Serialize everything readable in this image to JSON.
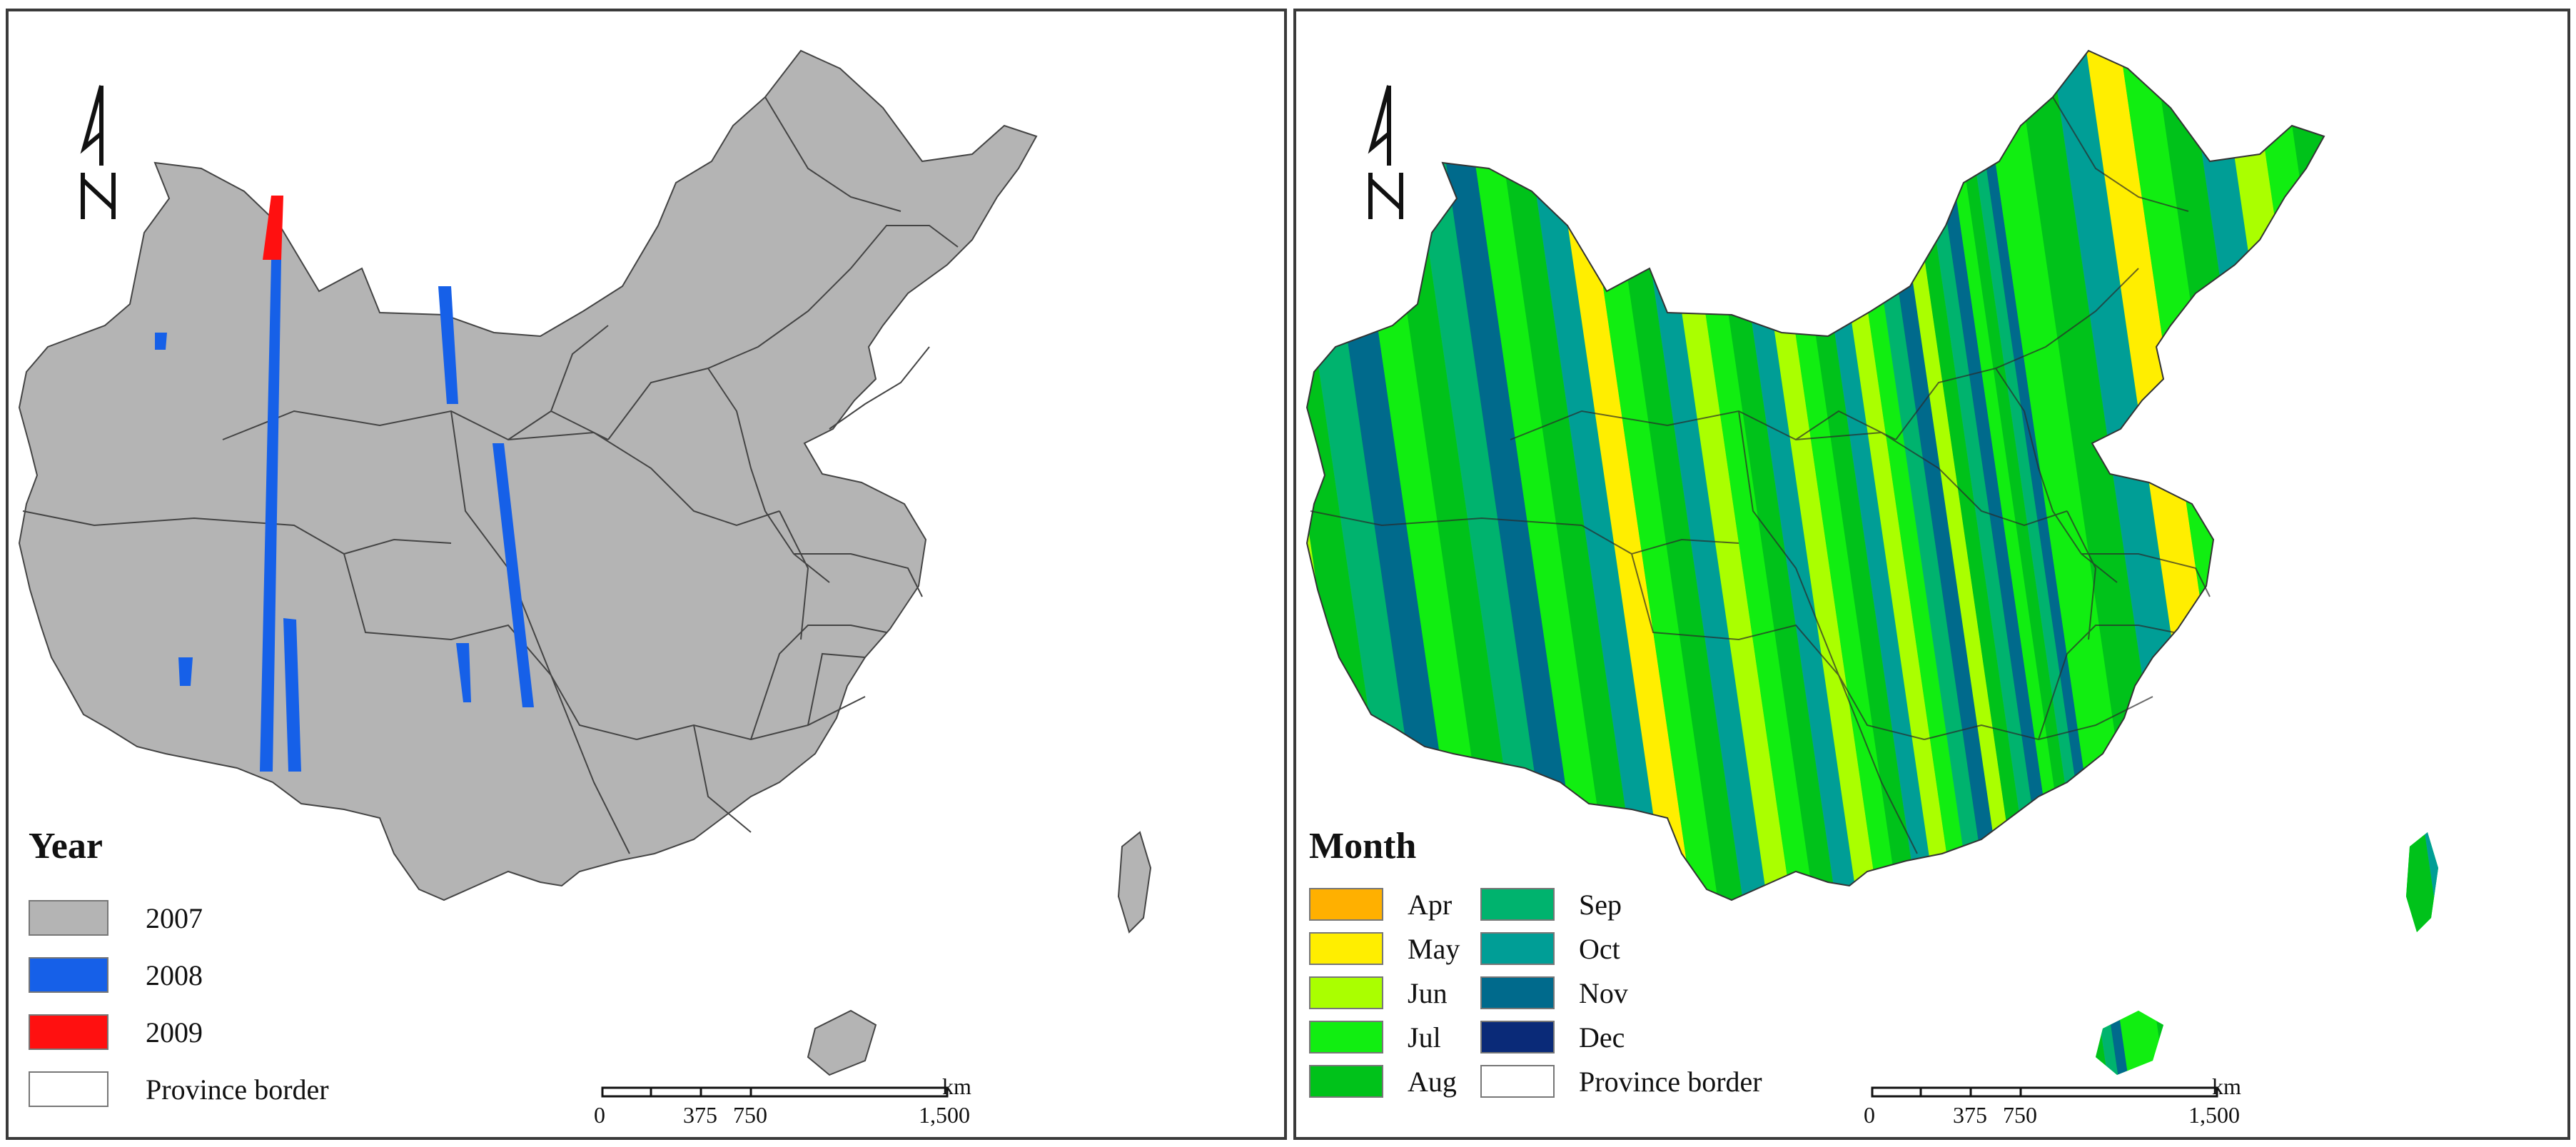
{
  "left_map": {
    "legend_title": "Year",
    "legend_items": [
      {
        "label": "2007",
        "color": "#b4b4b4"
      },
      {
        "label": "2008",
        "color": "#1660e8"
      },
      {
        "label": "2009",
        "color": "#ff1010"
      },
      {
        "label": "Province border",
        "color": "#ffffff"
      }
    ]
  },
  "right_map": {
    "legend_title": "Month",
    "legend_col1": [
      {
        "label": "Apr",
        "color": "#ffb000"
      },
      {
        "label": "May",
        "color": "#ffee00"
      },
      {
        "label": "Jun",
        "color": "#aaff00"
      },
      {
        "label": "Jul",
        "color": "#11ee11"
      },
      {
        "label": "Aug",
        "color": "#00c21a"
      }
    ],
    "legend_col2": [
      {
        "label": "Sep",
        "color": "#00b36e"
      },
      {
        "label": "Oct",
        "color": "#009e96"
      },
      {
        "label": "Nov",
        "color": "#006a8c"
      },
      {
        "label": "Dec",
        "color": "#0a2a78"
      },
      {
        "label": "Province border",
        "color": "#ffffff"
      }
    ]
  },
  "scale_bar": {
    "unit": "km",
    "ticks": [
      "0",
      "375",
      "750",
      "1,500"
    ]
  }
}
